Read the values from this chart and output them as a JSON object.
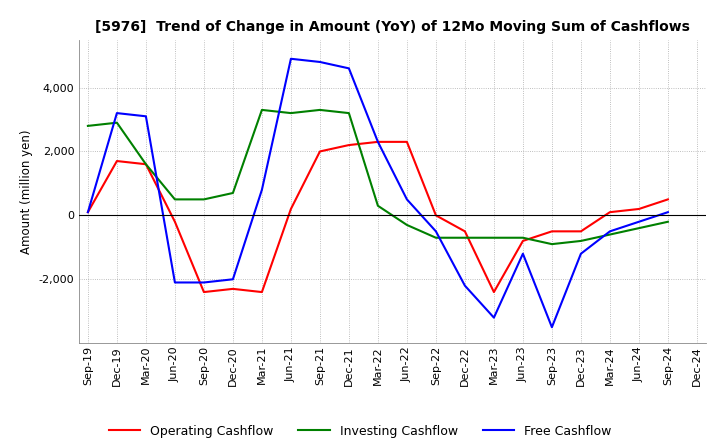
{
  "title": "[5976]  Trend of Change in Amount (YoY) of 12Mo Moving Sum of Cashflows",
  "ylabel": "Amount (million yen)",
  "x_labels": [
    "Sep-19",
    "Dec-19",
    "Mar-20",
    "Jun-20",
    "Sep-20",
    "Dec-20",
    "Mar-21",
    "Jun-21",
    "Sep-21",
    "Dec-21",
    "Mar-22",
    "Jun-22",
    "Sep-22",
    "Dec-22",
    "Mar-23",
    "Jun-23",
    "Sep-23",
    "Dec-23",
    "Mar-24",
    "Jun-24",
    "Sep-24",
    "Dec-24"
  ],
  "operating": [
    100,
    1700,
    1600,
    -200,
    -2400,
    -2300,
    -2400,
    200,
    2000,
    2200,
    2300,
    2300,
    0,
    -500,
    -2400,
    -800,
    -500,
    -500,
    100,
    200,
    500,
    null
  ],
  "investing": [
    2800,
    2900,
    1600,
    500,
    500,
    700,
    3300,
    3200,
    3300,
    3200,
    300,
    -300,
    -700,
    -700,
    -700,
    -700,
    -900,
    -800,
    -600,
    -400,
    -200,
    null
  ],
  "free": [
    100,
    3200,
    3100,
    -2100,
    -2100,
    -2000,
    800,
    4900,
    4800,
    4600,
    2300,
    500,
    -500,
    -2200,
    -3200,
    -1200,
    -3500,
    -1200,
    -500,
    -200,
    100,
    null
  ],
  "ylim": [
    -4000,
    5500
  ],
  "yticks": [
    -2000,
    0,
    2000,
    4000
  ],
  "operating_color": "#ff0000",
  "investing_color": "#008000",
  "free_color": "#0000ff",
  "legend_labels": [
    "Operating Cashflow",
    "Investing Cashflow",
    "Free Cashflow"
  ],
  "background_color": "#ffffff",
  "grid_color": "#aaaaaa",
  "title_fontsize": 10,
  "label_fontsize": 8.5,
  "tick_fontsize": 8
}
